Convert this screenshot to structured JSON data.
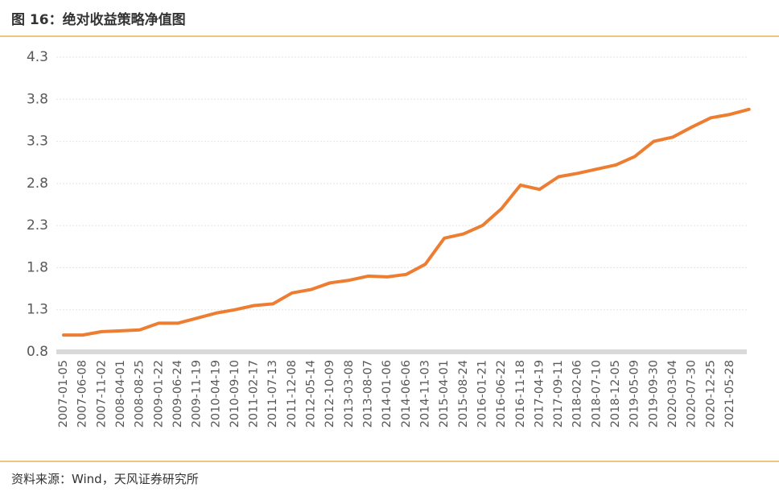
{
  "chart_data": {
    "type": "line",
    "title": "图 16：绝对收益策略净值图",
    "source": "资料来源：Wind，天风证券研究所",
    "categories": [
      "2007-01-05",
      "2007-06-08",
      "2007-11-02",
      "2008-04-01",
      "2008-08-25",
      "2009-01-22",
      "2009-06-24",
      "2009-11-19",
      "2010-04-19",
      "2010-09-10",
      "2011-02-17",
      "2011-07-13",
      "2011-12-08",
      "2012-05-14",
      "2012-10-09",
      "2013-03-08",
      "2013-08-07",
      "2014-01-06",
      "2014-06-06",
      "2014-11-03",
      "2015-04-01",
      "2015-08-24",
      "2016-01-21",
      "2016-06-22",
      "2016-11-18",
      "2017-04-19",
      "2017-09-11",
      "2018-02-06",
      "2018-07-10",
      "2018-12-05",
      "2019-05-09",
      "2019-09-30",
      "2020-03-04",
      "2020-07-30",
      "2020-12-25",
      "2021-05-28",
      null
    ],
    "values": [
      1.0,
      1.0,
      1.04,
      1.05,
      1.06,
      1.14,
      1.14,
      1.2,
      1.26,
      1.3,
      1.35,
      1.37,
      1.5,
      1.54,
      1.62,
      1.65,
      1.7,
      1.69,
      1.72,
      1.84,
      2.15,
      2.2,
      2.3,
      2.5,
      2.78,
      2.73,
      2.88,
      2.92,
      2.97,
      3.02,
      3.12,
      3.3,
      3.35,
      3.47,
      3.58,
      3.62,
      3.68
    ],
    "color": "#ed7d31",
    "ylim": [
      0.8,
      4.3
    ],
    "yticks": [
      0.8,
      1.3,
      1.8,
      2.3,
      2.8,
      3.3,
      3.8,
      4.3
    ],
    "grid": true
  }
}
